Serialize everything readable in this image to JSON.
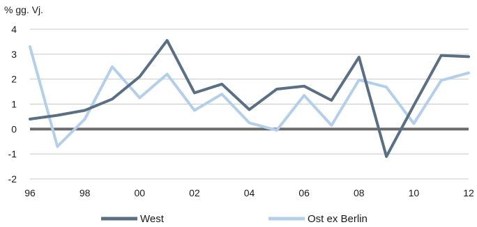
{
  "chart_data": {
    "type": "line",
    "ylabel": "% gg. Vj.",
    "x": [
      1996,
      1997,
      1998,
      1999,
      2000,
      2001,
      2002,
      2003,
      2004,
      2005,
      2006,
      2007,
      2008,
      2009,
      2010,
      2011,
      2012
    ],
    "xticks": [
      "96",
      "98",
      "00",
      "02",
      "04",
      "06",
      "08",
      "10",
      "12"
    ],
    "xtick_values": [
      1996,
      1998,
      2000,
      2002,
      2004,
      2006,
      2008,
      2010,
      2012
    ],
    "ylim": [
      -2,
      4
    ],
    "yticks": [
      "4",
      "3",
      "2",
      "1",
      "0",
      "-1",
      "-2"
    ],
    "ytick_values": [
      4,
      3,
      2,
      1,
      0,
      -1,
      -2
    ],
    "grid": true,
    "legend_position": "bottom",
    "series": [
      {
        "name": "West",
        "color": "#5a6e84",
        "values": [
          0.4,
          0.55,
          0.75,
          1.2,
          2.1,
          3.55,
          1.45,
          1.8,
          0.78,
          1.6,
          1.72,
          1.15,
          2.88,
          -1.1,
          0.95,
          2.95,
          2.9
        ]
      },
      {
        "name": "Ost ex Berlin",
        "color": "#b3cfe9",
        "values": [
          3.3,
          -0.7,
          0.4,
          2.5,
          1.25,
          2.2,
          0.75,
          1.4,
          0.25,
          -0.05,
          1.35,
          0.15,
          1.97,
          1.68,
          0.22,
          1.95,
          2.25
        ]
      }
    ]
  }
}
